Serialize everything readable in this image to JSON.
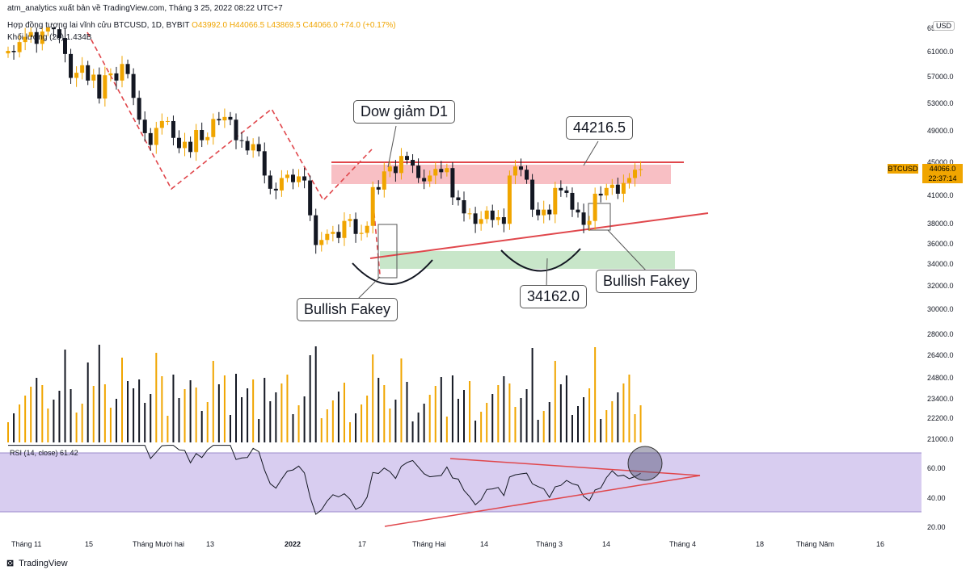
{
  "header": {
    "publisher": "atm_analytics xuất bản về TradingView.com, Tháng 3 25, 2022 08:22 UTC+7",
    "symbol_line": "Hợp đồng tương lai vĩnh cửu BTCUSD, 1D, BYBIT",
    "ohlc": {
      "o": "O43992.0",
      "h": "H44066.5",
      "l": "L43869.5",
      "c": "C44066.0",
      "chg": "+74.0 (+0.17%)"
    },
    "volume_label": "Khối lượng (20)",
    "volume_value": "1.434B"
  },
  "currency": "USD",
  "price_tag": {
    "symbol": "BTCUSD",
    "price": "44066.0",
    "countdown": "22:37:14"
  },
  "callouts": {
    "dow": "Dow giảm D1",
    "level_high": "44216.5",
    "bullish_left": "Bullish Fakey",
    "level_low": "34162.0",
    "bullish_right": "Bullish Fakey"
  },
  "rsi_label": "RSI (14, close)",
  "rsi_value": "61.42",
  "footer": {
    "brand": "TradingView"
  },
  "colors": {
    "up": "#f0a500",
    "down": "#131722",
    "resistance": "#e0474c",
    "zone_red": "#f8bfc4",
    "zone_green": "#c8e6c9",
    "rsi_bg": "#d8cdf0",
    "rsi_line": "#131722"
  },
  "chart_data": {
    "type": "candlestick",
    "price_axis_ticks": [
      "65000.0",
      "61000.0",
      "57000.0",
      "53000.0",
      "49000.0",
      "45000.0",
      "41000.0",
      "38000.0",
      "36000.0",
      "34000.0",
      "32000.0",
      "30000.0",
      "28000.0",
      "26400.0",
      "24800.0",
      "23400.0",
      "22200.0",
      "21000.0"
    ],
    "rsi_axis_ticks": [
      "60.00",
      "40.00",
      "20.00"
    ],
    "time_axis_labels": [
      "Tháng 11",
      "15",
      "Tháng Mười hai",
      "13",
      "2022",
      "17",
      "Tháng Hai",
      "14",
      "Tháng 3",
      "14",
      "Tháng 4",
      "18",
      "Tháng Năm",
      "16"
    ],
    "closes": [
      61000,
      60800,
      62500,
      63400,
      64200,
      62200,
      64300,
      65700,
      64700,
      63200,
      60500,
      56700,
      57500,
      58700,
      56300,
      57200,
      53600,
      57100,
      57400,
      56300,
      58900,
      57300,
      53700,
      50500,
      48600,
      47100,
      49300,
      50300,
      50300,
      48000,
      46700,
      47500,
      46200,
      49000,
      47700,
      48100,
      50600,
      50400,
      50900,
      50500,
      47700,
      47600,
      46400,
      47200,
      46300,
      43300,
      41700,
      41500,
      43000,
      43400,
      42500,
      43200,
      42700,
      38800,
      35800,
      36300,
      36900,
      37100,
      36500,
      38200,
      38400,
      36900,
      37000,
      37700,
      41900,
      41600,
      43800,
      44400,
      43600,
      45700,
      45200,
      44500,
      43000,
      42600,
      43300,
      44100,
      43700,
      44200,
      40700,
      40400,
      39000,
      39000,
      37900,
      38400,
      39300,
      38300,
      38600,
      37900,
      43300,
      44400,
      44000,
      42800,
      39400,
      38800,
      39400,
      38900,
      41800,
      41500,
      41200,
      39400,
      39100,
      37800,
      38200,
      41100,
      40900,
      41800,
      42200,
      41100,
      42400,
      43000,
      44000,
      44066
    ],
    "ma_rsi_values": [
      45,
      52,
      61.42
    ],
    "annotations": {
      "resistance": 44216.5,
      "support": 34162.0
    }
  }
}
